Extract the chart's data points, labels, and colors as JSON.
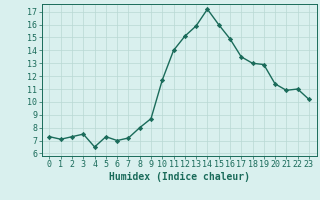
{
  "x": [
    0,
    1,
    2,
    3,
    4,
    5,
    6,
    7,
    8,
    9,
    10,
    11,
    12,
    13,
    14,
    15,
    16,
    17,
    18,
    19,
    20,
    21,
    22,
    23
  ],
  "y": [
    7.3,
    7.1,
    7.3,
    7.5,
    6.5,
    7.3,
    7.0,
    7.2,
    8.0,
    8.7,
    11.7,
    14.0,
    15.1,
    15.9,
    17.2,
    16.0,
    14.9,
    13.5,
    13.0,
    12.9,
    11.4,
    10.9,
    11.0,
    10.2
  ],
  "line_color": "#1a6b5a",
  "marker": "D",
  "marker_size": 2.2,
  "bg_color": "#d9f0ee",
  "grid_color": "#b8d8d4",
  "tick_color": "#1a6b5a",
  "xlabel": "Humidex (Indice chaleur)",
  "ylim": [
    5.8,
    17.6
  ],
  "yticks": [
    6,
    7,
    8,
    9,
    10,
    11,
    12,
    13,
    14,
    15,
    16,
    17
  ],
  "xticks": [
    0,
    1,
    2,
    3,
    4,
    5,
    6,
    7,
    8,
    9,
    10,
    11,
    12,
    13,
    14,
    15,
    16,
    17,
    18,
    19,
    20,
    21,
    22,
    23
  ],
  "xtick_labels": [
    "0",
    "1",
    "2",
    "3",
    "4",
    "5",
    "6",
    "7",
    "8",
    "9",
    "10",
    "11",
    "12",
    "13",
    "14",
    "15",
    "16",
    "17",
    "18",
    "19",
    "20",
    "21",
    "22",
    "23"
  ],
  "xlabel_color": "#1a6b5a",
  "xlabel_fontsize": 7,
  "tick_label_fontsize": 6,
  "line_width": 1.0
}
